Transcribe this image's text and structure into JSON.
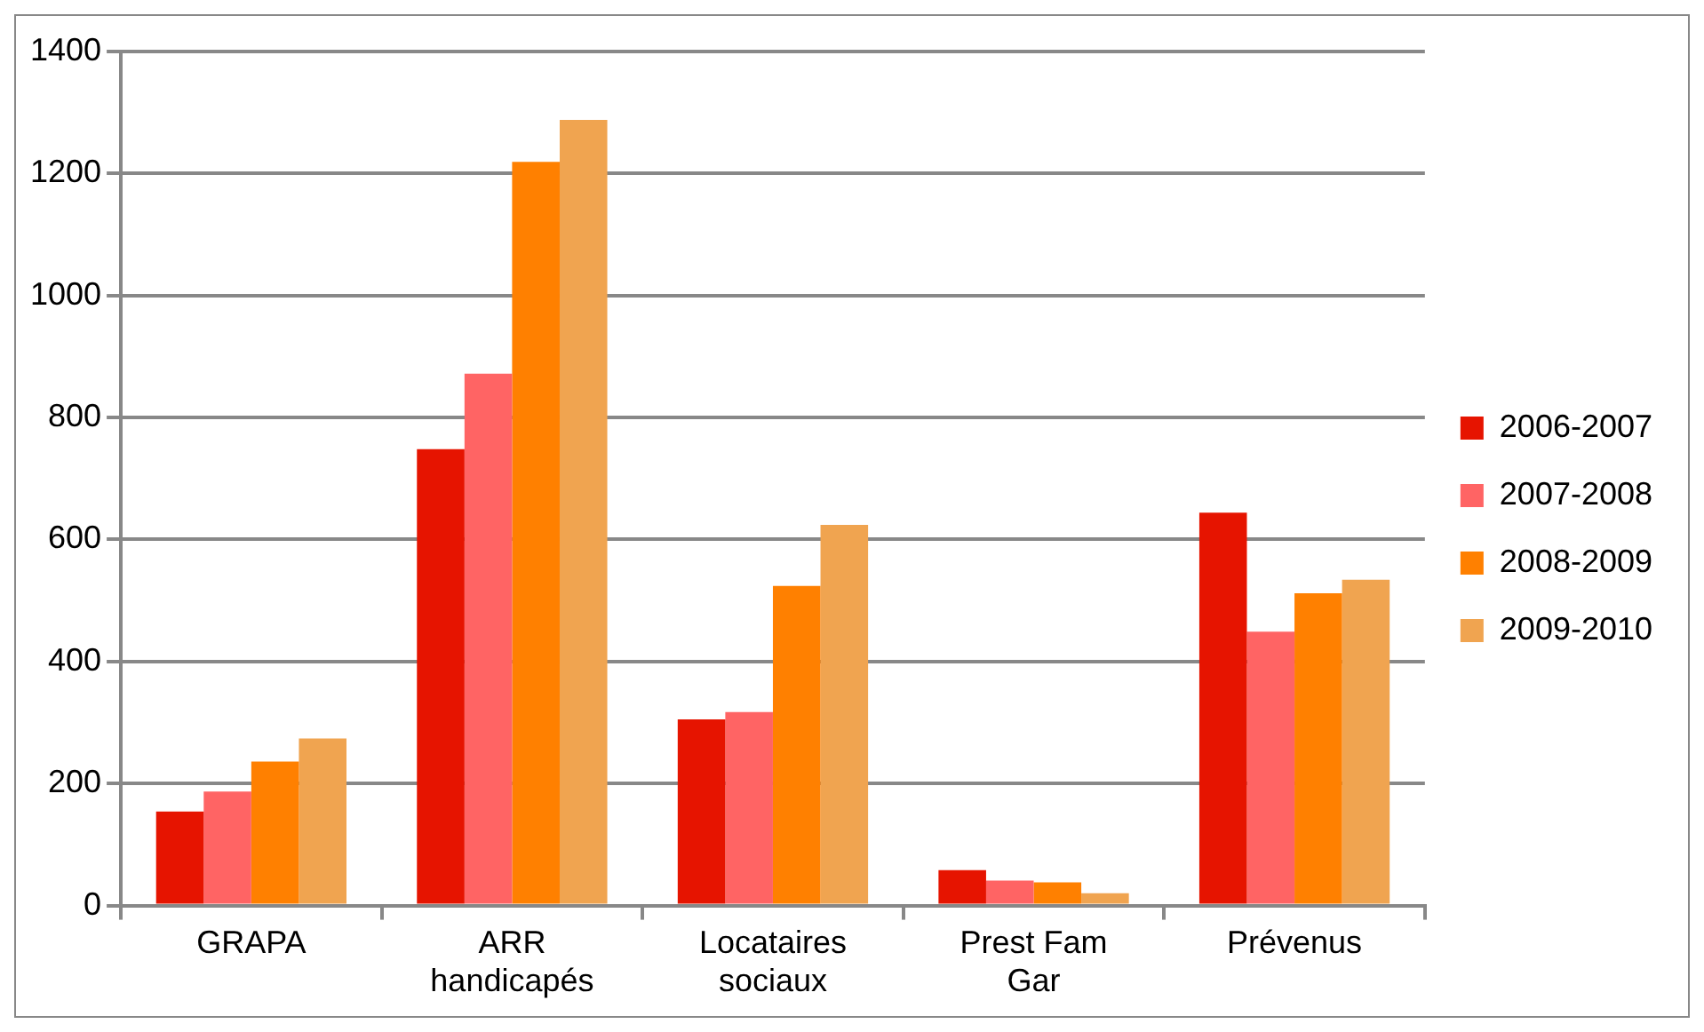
{
  "chart_data": {
    "type": "bar",
    "categories": [
      "GRAPA",
      "ARR handicapés",
      "Locataires sociaux",
      "Prest Fam Gar",
      "Prévenus"
    ],
    "series": [
      {
        "name": "2006-2007",
        "color": "#e61400",
        "values": [
          154,
          748,
          305,
          58,
          644
        ]
      },
      {
        "name": "2007-2008",
        "color": "#ff6464",
        "values": [
          187,
          872,
          317,
          41,
          449
        ]
      },
      {
        "name": "2008-2009",
        "color": "#ff8000",
        "values": [
          236,
          1219,
          524,
          38,
          512
        ]
      },
      {
        "name": "2009-2010",
        "color": "#f0a450",
        "values": [
          274,
          1288,
          624,
          20,
          534
        ]
      }
    ],
    "ylim": [
      0,
      1400
    ],
    "yticks": [
      0,
      200,
      400,
      600,
      800,
      1000,
      1200,
      1400
    ],
    "grid": "y",
    "legend": "right"
  }
}
